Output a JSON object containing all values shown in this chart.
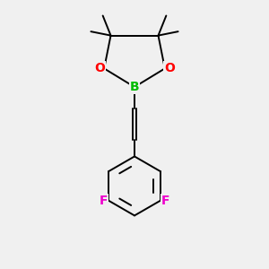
{
  "background_color": "#f0f0f0",
  "bond_color": "#000000",
  "boron_color": "#00bb00",
  "oxygen_color": "#ff0000",
  "fluorine_color": "#ee00cc",
  "B_label": "B",
  "O_label": "O",
  "F_label": "F",
  "figsize": [
    3.0,
    3.0
  ],
  "dpi": 100
}
